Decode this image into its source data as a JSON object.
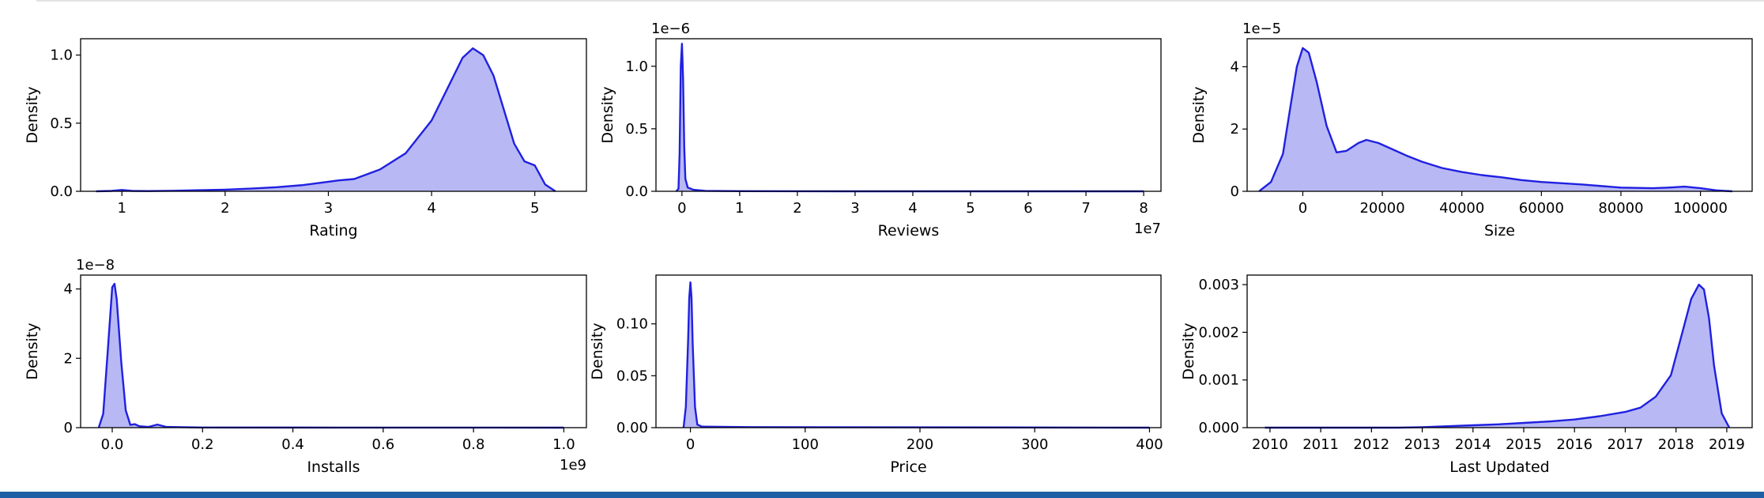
{
  "figure": {
    "line_color": "#2020e0",
    "fill_color": "#b8b8f5"
  },
  "chart_data": [
    {
      "type": "area",
      "xlabel": "Rating",
      "ylabel": "Density",
      "offset_y": "",
      "offset_x": "",
      "xlim": [
        0.6,
        5.5
      ],
      "ylim": [
        0,
        1.12
      ],
      "xticks": [
        1,
        2,
        3,
        4,
        5
      ],
      "xtick_labels": [
        "1",
        "2",
        "3",
        "4",
        "5"
      ],
      "yticks": [
        0,
        0.5,
        1.0
      ],
      "ytick_labels": [
        "0.0",
        "0.5",
        "1.0"
      ],
      "x": [
        0.75,
        0.9,
        1.0,
        1.1,
        1.25,
        1.5,
        1.75,
        2.0,
        2.25,
        2.5,
        2.75,
        3.0,
        3.1,
        3.25,
        3.5,
        3.75,
        4.0,
        4.15,
        4.3,
        4.4,
        4.5,
        4.6,
        4.7,
        4.8,
        4.9,
        5.0,
        5.1,
        5.2
      ],
      "y": [
        0.0,
        0.003,
        0.01,
        0.003,
        0.002,
        0.004,
        0.008,
        0.012,
        0.02,
        0.03,
        0.045,
        0.07,
        0.08,
        0.09,
        0.16,
        0.28,
        0.52,
        0.75,
        0.98,
        1.05,
        1.0,
        0.85,
        0.6,
        0.35,
        0.22,
        0.19,
        0.05,
        0.0
      ]
    },
    {
      "type": "area",
      "xlabel": "Reviews",
      "ylabel": "Density",
      "offset_y": "1e−6",
      "offset_x": "1e7",
      "xlim": [
        -0.45,
        8.3
      ],
      "ylim": [
        0,
        1.22
      ],
      "xticks": [
        0,
        1,
        2,
        3,
        4,
        5,
        6,
        7,
        8
      ],
      "xtick_labels": [
        "0",
        "1",
        "2",
        "3",
        "4",
        "5",
        "6",
        "7",
        "8"
      ],
      "yticks": [
        0,
        0.5,
        1.0
      ],
      "ytick_labels": [
        "0.0",
        "0.5",
        "1.0"
      ],
      "x": [
        -0.1,
        -0.06,
        -0.04,
        -0.02,
        0.0,
        0.02,
        0.04,
        0.06,
        0.1,
        0.2,
        0.4,
        1.0,
        3.0,
        8.0
      ],
      "y": [
        0.0,
        0.02,
        0.3,
        1.0,
        1.18,
        0.9,
        0.35,
        0.1,
        0.03,
        0.012,
        0.004,
        0.001,
        0.0,
        0.0
      ]
    },
    {
      "type": "area",
      "xlabel": "Size",
      "ylabel": "Density",
      "offset_y": "1e−5",
      "offset_x": "",
      "xlim": [
        -14000,
        113000
      ],
      "ylim": [
        0,
        4.9
      ],
      "xticks": [
        0,
        20000,
        40000,
        60000,
        80000,
        100000
      ],
      "xtick_labels": [
        "0",
        "20000",
        "40000",
        "60000",
        "80000",
        "100000"
      ],
      "yticks": [
        0,
        2,
        4
      ],
      "ytick_labels": [
        "0",
        "2",
        "4"
      ],
      "x": [
        -11000,
        -8000,
        -5000,
        -3000,
        -1500,
        0,
        1500,
        3500,
        6000,
        8500,
        11000,
        14000,
        16000,
        19000,
        22000,
        26000,
        30000,
        35000,
        40000,
        45000,
        50000,
        55000,
        60000,
        70000,
        80000,
        88000,
        92000,
        96000,
        100000,
        104000,
        108000
      ],
      "y": [
        0.0,
        0.3,
        1.2,
        2.8,
        4.0,
        4.6,
        4.45,
        3.5,
        2.1,
        1.25,
        1.3,
        1.55,
        1.65,
        1.55,
        1.38,
        1.15,
        0.95,
        0.75,
        0.62,
        0.52,
        0.45,
        0.36,
        0.3,
        0.22,
        0.12,
        0.1,
        0.12,
        0.15,
        0.1,
        0.03,
        0.0
      ]
    },
    {
      "type": "area",
      "xlabel": "Installs",
      "ylabel": "Density",
      "offset_y": "1e−8",
      "offset_x": "1e9",
      "xlim": [
        -0.07,
        1.05
      ],
      "ylim": [
        0,
        4.4
      ],
      "xticks": [
        0,
        0.2,
        0.4,
        0.6,
        0.8,
        1.0
      ],
      "xtick_labels": [
        "0.0",
        "0.2",
        "0.4",
        "0.6",
        "0.8",
        "1.0"
      ],
      "yticks": [
        0,
        2,
        4
      ],
      "ytick_labels": [
        "0",
        "2",
        "4"
      ],
      "x": [
        -0.03,
        -0.02,
        -0.01,
        0.0,
        0.005,
        0.01,
        0.02,
        0.03,
        0.04,
        0.05,
        0.06,
        0.08,
        0.1,
        0.12,
        0.2,
        0.5,
        1.0
      ],
      "y": [
        0.0,
        0.4,
        2.2,
        4.05,
        4.15,
        3.7,
        1.9,
        0.5,
        0.08,
        0.1,
        0.04,
        0.02,
        0.09,
        0.02,
        0.005,
        0.002,
        0.0
      ]
    },
    {
      "type": "area",
      "xlabel": "Price",
      "ylabel": "Density",
      "offset_y": "",
      "offset_x": "",
      "xlim": [
        -30,
        410
      ],
      "ylim": [
        0,
        0.147
      ],
      "xticks": [
        0,
        100,
        200,
        300,
        400
      ],
      "xtick_labels": [
        "0",
        "100",
        "200",
        "300",
        "400"
      ],
      "yticks": [
        0,
        0.05,
        0.1
      ],
      "ytick_labels": [
        "0.00",
        "0.05",
        "0.10"
      ],
      "x": [
        -6,
        -4,
        -2,
        -1,
        0,
        1,
        2,
        4,
        6,
        10,
        50,
        400
      ],
      "y": [
        0.0,
        0.02,
        0.085,
        0.125,
        0.14,
        0.125,
        0.08,
        0.02,
        0.003,
        0.001,
        0.0005,
        0.0
      ]
    },
    {
      "type": "area",
      "xlabel": "Last Updated",
      "ylabel": "Density",
      "offset_y": "",
      "offset_x": "",
      "xlim": [
        2009.55,
        2019.5
      ],
      "ylim": [
        0,
        0.0032
      ],
      "xticks": [
        2010,
        2011,
        2012,
        2013,
        2014,
        2015,
        2016,
        2017,
        2018,
        2019
      ],
      "xtick_labels": [
        "2010",
        "2011",
        "2012",
        "2013",
        "2014",
        "2015",
        "2016",
        "2017",
        "2018",
        "2019"
      ],
      "yticks": [
        0,
        0.001,
        0.002,
        0.003
      ],
      "ytick_labels": [
        "0.000",
        "0.001",
        "0.002",
        "0.003"
      ],
      "x": [
        2009.9,
        2012.5,
        2013.0,
        2013.5,
        2014.0,
        2014.5,
        2015.0,
        2015.5,
        2016.0,
        2016.5,
        2017.0,
        2017.3,
        2017.6,
        2017.9,
        2018.1,
        2018.3,
        2018.45,
        2018.55,
        2018.65,
        2018.75,
        2018.9,
        2019.05
      ],
      "y": [
        0.0,
        0.0,
        1e-05,
        3e-05,
        5e-05,
        7e-05,
        0.0001,
        0.00013,
        0.00017,
        0.00024,
        0.00033,
        0.00042,
        0.00065,
        0.0011,
        0.0019,
        0.0027,
        0.003,
        0.0029,
        0.0023,
        0.0013,
        0.0003,
        0.0
      ]
    }
  ]
}
